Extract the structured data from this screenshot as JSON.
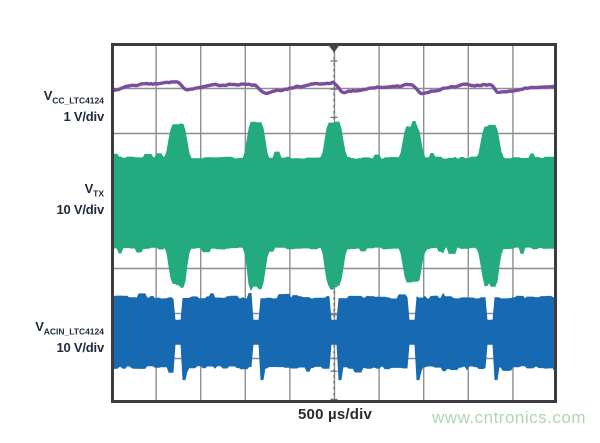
{
  "watermark": {
    "text": "www.cntronics.com",
    "color": "#afd7ab"
  },
  "chart_data": {
    "type": "oscilloscope",
    "timebase_label": "500 µs/div",
    "grid": {
      "columns": 10,
      "rows": 8,
      "line_color": "#8e8e96",
      "border_color": "#3b3b40",
      "background": "#ffffff"
    },
    "trigger": {
      "position_div": 5,
      "line_color": "#6b6b73",
      "marker_color": "#45454c"
    },
    "traces": [
      {
        "name": "VCC_LTC4124",
        "label": "V",
        "subscript": "CC_LTC4124",
        "scale_label": "1 V/div",
        "color": "#7c4d9f",
        "center_div": 0.98,
        "ripple_period_div": 1.75,
        "ripple_dip_div": 0.19
      },
      {
        "name": "VTX",
        "label": "V",
        "subscript": "TX",
        "scale_label": "10 V/div",
        "color": "#23aa7f",
        "center_div": 3.58,
        "idle_amplitude_div": 1.0,
        "burst_amplitude_div": 1.78,
        "burst_period_div": 1.75,
        "burst_width_div": 0.28
      },
      {
        "name": "VACIN_LTC4124",
        "label": "V",
        "subscript": "ACIN_LTC4124",
        "scale_label": "10 V/div",
        "color": "#176ab2",
        "center_div": 6.43,
        "amplitude_div": 0.74,
        "notch_period_div": 1.75,
        "notch_width_div": 0.16,
        "spike_depth_div": 1.05
      }
    ]
  }
}
